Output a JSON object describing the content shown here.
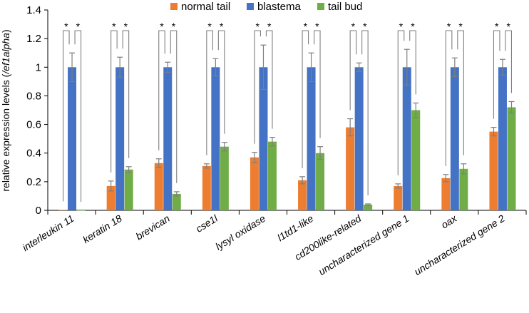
{
  "chart_data": {
    "type": "bar",
    "title": "",
    "xlabel": "",
    "ylabel_prefix": "relative expression levels (",
    "ylabel_italic": "/ef1alpha",
    "ylabel_suffix": ")",
    "ylim": [
      0,
      1.4
    ],
    "yticks": [
      "0",
      "0.2",
      "0.4",
      "0.6",
      "0.8",
      "1",
      "1.2",
      "1.4"
    ],
    "grid": false,
    "legend_position": "top",
    "significance_marker": "*",
    "categories": [
      "interleukin 11",
      "keratin 18",
      "brevican",
      "cse1l",
      "lysyl oxidase",
      "l1td1-like",
      "cd200like-related",
      "uncharacterized gene 1",
      "oax",
      "uncharacterized gene 2"
    ],
    "series": [
      {
        "name": "normal tail",
        "color": "#ed7d31",
        "values": [
          0.003,
          0.17,
          0.33,
          0.31,
          0.37,
          0.21,
          0.58,
          0.17,
          0.225,
          0.55
        ],
        "errors": [
          0,
          0.035,
          0.03,
          0.015,
          0.035,
          0.025,
          0.06,
          0.015,
          0.025,
          0.03
        ]
      },
      {
        "name": "blastema",
        "color": "#4472c4",
        "values": [
          1,
          1,
          1,
          1,
          1,
          1,
          1,
          1,
          1,
          1
        ],
        "errors": [
          0.1,
          0.07,
          0.035,
          0.06,
          0.155,
          0.1,
          0.03,
          0.125,
          0.065,
          0.055
        ]
      },
      {
        "name": "tail bud",
        "color": "#70ad47",
        "values": [
          0,
          0.285,
          0.115,
          0.445,
          0.48,
          0.4,
          0.04,
          0.7,
          0.29,
          0.72
        ],
        "errors": [
          0,
          0.02,
          0.015,
          0.03,
          0.03,
          0.045,
          0.005,
          0.05,
          0.035,
          0.04
        ]
      }
    ]
  }
}
